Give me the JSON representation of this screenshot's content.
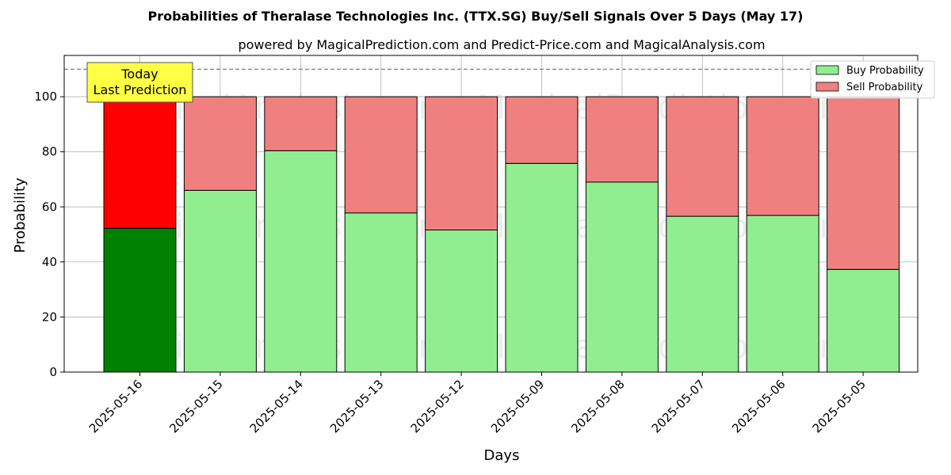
{
  "chart_data": {
    "type": "bar",
    "stacked": true,
    "title": "Probabilities of Theralase Technologies Inc. (TTX.SG) Buy/Sell Signals Over 5 Days (May 17)",
    "subtitle": "powered by MagicalPrediction.com and Predict-Price.com and MagicalAnalysis.com",
    "xlabel": "Days",
    "ylabel": "Probability",
    "ylim": [
      0,
      115
    ],
    "yticks": [
      0,
      20,
      40,
      60,
      80,
      100
    ],
    "reference_line": 110,
    "grid": true,
    "legend_position": "top-right",
    "categories": [
      "2025-05-16",
      "2025-05-15",
      "2025-05-14",
      "2025-05-13",
      "2025-05-12",
      "2025-05-09",
      "2025-05-08",
      "2025-05-07",
      "2025-05-06",
      "2025-05-05"
    ],
    "series": [
      {
        "name": "Buy Probability",
        "values": [
          52.2,
          66.0,
          80.4,
          57.8,
          51.6,
          75.8,
          69.0,
          56.6,
          56.9,
          37.3
        ],
        "color": "#90ee90",
        "highlight_color": "#008000"
      },
      {
        "name": "Sell Probability",
        "values": [
          47.8,
          34.0,
          19.6,
          42.2,
          48.4,
          24.2,
          31.0,
          43.4,
          43.1,
          62.7
        ],
        "color": "#f08080",
        "highlight_color": "#ff0000"
      }
    ],
    "annotation": {
      "lines": [
        "Today",
        "Last Prediction"
      ],
      "background": "#ffff44"
    },
    "watermarks": [
      "MagicalAnalysis.com",
      "MagicalPrediction.com"
    ]
  }
}
